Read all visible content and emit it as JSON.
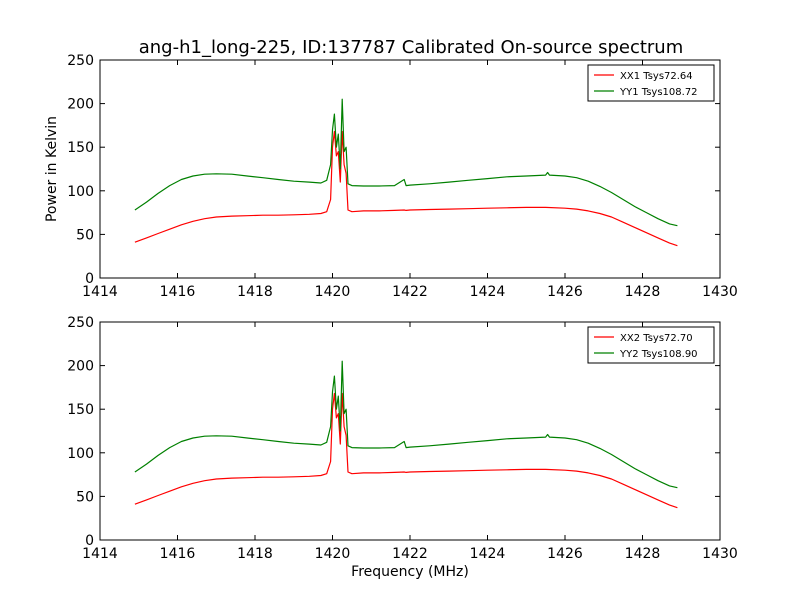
{
  "figure": {
    "title": "ang-h1_long-225, ID:137787 Calibrated On-source spectrum"
  },
  "chart_data": [
    {
      "type": "line",
      "title": "ang-h1_long-225, ID:137787 Calibrated On-source spectrum",
      "xlabel": "",
      "ylabel": "Power in Kelvin",
      "xlim": [
        1414,
        1430
      ],
      "ylim": [
        0,
        250
      ],
      "xticks": [
        1414,
        1416,
        1418,
        1420,
        1422,
        1424,
        1426,
        1428,
        1430
      ],
      "yticks": [
        0,
        50,
        100,
        150,
        200,
        250
      ],
      "grid": false,
      "legend_position": "top-right",
      "series": [
        {
          "name": "XX1 Tsys72.64",
          "color": "#ff0000",
          "x": [
            1414.9,
            1415.2,
            1415.5,
            1415.8,
            1416.1,
            1416.4,
            1416.7,
            1417.0,
            1417.4,
            1417.8,
            1418.2,
            1418.6,
            1419.0,
            1419.4,
            1419.7,
            1419.85,
            1419.95,
            1420.0,
            1420.05,
            1420.1,
            1420.15,
            1420.2,
            1420.25,
            1420.3,
            1420.35,
            1420.4,
            1420.5,
            1420.8,
            1421.2,
            1421.6,
            1421.85,
            1421.9,
            1422.0,
            1422.5,
            1423.0,
            1423.5,
            1424.0,
            1424.5,
            1425.0,
            1425.5,
            1426.0,
            1426.3,
            1426.6,
            1426.9,
            1427.2,
            1427.5,
            1427.8,
            1428.1,
            1428.4,
            1428.7,
            1428.9
          ],
          "y": [
            41,
            46,
            51,
            56,
            61,
            65,
            68,
            70,
            71,
            71.5,
            72,
            72,
            72.5,
            73,
            74,
            76,
            90,
            150,
            168,
            140,
            145,
            110,
            168,
            130,
            120,
            78,
            76,
            77,
            77,
            77.5,
            78,
            77.5,
            78,
            78.5,
            79,
            79.5,
            80,
            80.5,
            81,
            81,
            80,
            79,
            77,
            74,
            70,
            64,
            58,
            52,
            46,
            40,
            37
          ]
        },
        {
          "name": "YY1 Tsys108.72",
          "color": "#008000",
          "x": [
            1414.9,
            1415.2,
            1415.5,
            1415.8,
            1416.1,
            1416.4,
            1416.7,
            1417.0,
            1417.4,
            1417.8,
            1418.2,
            1418.6,
            1419.0,
            1419.4,
            1419.7,
            1419.85,
            1419.95,
            1420.0,
            1420.05,
            1420.1,
            1420.15,
            1420.2,
            1420.25,
            1420.3,
            1420.35,
            1420.4,
            1420.5,
            1420.8,
            1421.2,
            1421.6,
            1421.85,
            1421.9,
            1422.0,
            1422.5,
            1423.0,
            1423.5,
            1424.0,
            1424.5,
            1425.0,
            1425.5,
            1425.55,
            1425.6,
            1426.0,
            1426.3,
            1426.6,
            1426.9,
            1427.2,
            1427.5,
            1427.8,
            1428.1,
            1428.4,
            1428.7,
            1428.9
          ],
          "y": [
            78,
            87,
            97,
            106,
            113,
            117,
            119,
            119.5,
            119,
            117,
            115,
            113,
            111,
            110,
            109,
            112,
            130,
            170,
            188,
            150,
            165,
            125,
            205,
            145,
            150,
            108,
            106,
            105.5,
            105.5,
            106,
            113,
            106,
            106.5,
            108,
            110,
            112,
            114,
            116,
            117,
            118,
            121,
            118,
            117,
            115,
            111,
            105,
            98,
            90,
            82,
            75,
            68,
            62,
            60
          ]
        }
      ]
    },
    {
      "type": "line",
      "title": "",
      "xlabel": "Frequency (MHz)",
      "ylabel": "",
      "xlim": [
        1414,
        1430
      ],
      "ylim": [
        0,
        250
      ],
      "xticks": [
        1414,
        1416,
        1418,
        1420,
        1422,
        1424,
        1426,
        1428,
        1430
      ],
      "yticks": [
        0,
        50,
        100,
        150,
        200,
        250
      ],
      "grid": false,
      "legend_position": "top-right",
      "series": [
        {
          "name": "XX2 Tsys72.70",
          "color": "#ff0000",
          "x": [
            1414.9,
            1415.2,
            1415.5,
            1415.8,
            1416.1,
            1416.4,
            1416.7,
            1417.0,
            1417.4,
            1417.8,
            1418.2,
            1418.6,
            1419.0,
            1419.4,
            1419.7,
            1419.85,
            1419.95,
            1420.0,
            1420.05,
            1420.1,
            1420.15,
            1420.2,
            1420.25,
            1420.3,
            1420.35,
            1420.4,
            1420.5,
            1420.8,
            1421.2,
            1421.6,
            1421.85,
            1421.9,
            1422.0,
            1422.5,
            1423.0,
            1423.5,
            1424.0,
            1424.5,
            1425.0,
            1425.5,
            1426.0,
            1426.3,
            1426.6,
            1426.9,
            1427.2,
            1427.5,
            1427.8,
            1428.1,
            1428.4,
            1428.7,
            1428.9
          ],
          "y": [
            41,
            46,
            51,
            56,
            61,
            65,
            68,
            70,
            71,
            71.5,
            72,
            72,
            72.5,
            73,
            74,
            76,
            90,
            150,
            168,
            140,
            145,
            110,
            168,
            130,
            120,
            78,
            76,
            77,
            77,
            77.5,
            78,
            77.5,
            78,
            78.5,
            79,
            79.5,
            80,
            80.5,
            81,
            81,
            80,
            79,
            77,
            74,
            70,
            64,
            58,
            52,
            46,
            40,
            37
          ]
        },
        {
          "name": "YY2 Tsys108.90",
          "color": "#008000",
          "x": [
            1414.9,
            1415.2,
            1415.5,
            1415.8,
            1416.1,
            1416.4,
            1416.7,
            1417.0,
            1417.4,
            1417.8,
            1418.2,
            1418.6,
            1419.0,
            1419.4,
            1419.7,
            1419.85,
            1419.95,
            1420.0,
            1420.05,
            1420.1,
            1420.15,
            1420.2,
            1420.25,
            1420.3,
            1420.35,
            1420.4,
            1420.5,
            1420.8,
            1421.2,
            1421.6,
            1421.85,
            1421.9,
            1422.0,
            1422.5,
            1423.0,
            1423.5,
            1424.0,
            1424.5,
            1425.0,
            1425.5,
            1425.55,
            1425.6,
            1426.0,
            1426.3,
            1426.6,
            1426.9,
            1427.2,
            1427.5,
            1427.8,
            1428.1,
            1428.4,
            1428.7,
            1428.9
          ],
          "y": [
            78,
            87,
            97,
            106,
            113,
            117,
            119,
            119.5,
            119,
            117,
            115,
            113,
            111,
            110,
            109,
            112,
            130,
            170,
            188,
            150,
            165,
            125,
            205,
            145,
            150,
            108,
            106,
            105.5,
            105.5,
            106,
            113,
            106,
            106.5,
            108,
            110,
            112,
            114,
            116,
            117,
            118,
            121,
            118,
            117,
            115,
            111,
            105,
            98,
            90,
            82,
            75,
            68,
            62,
            60
          ]
        }
      ]
    }
  ]
}
